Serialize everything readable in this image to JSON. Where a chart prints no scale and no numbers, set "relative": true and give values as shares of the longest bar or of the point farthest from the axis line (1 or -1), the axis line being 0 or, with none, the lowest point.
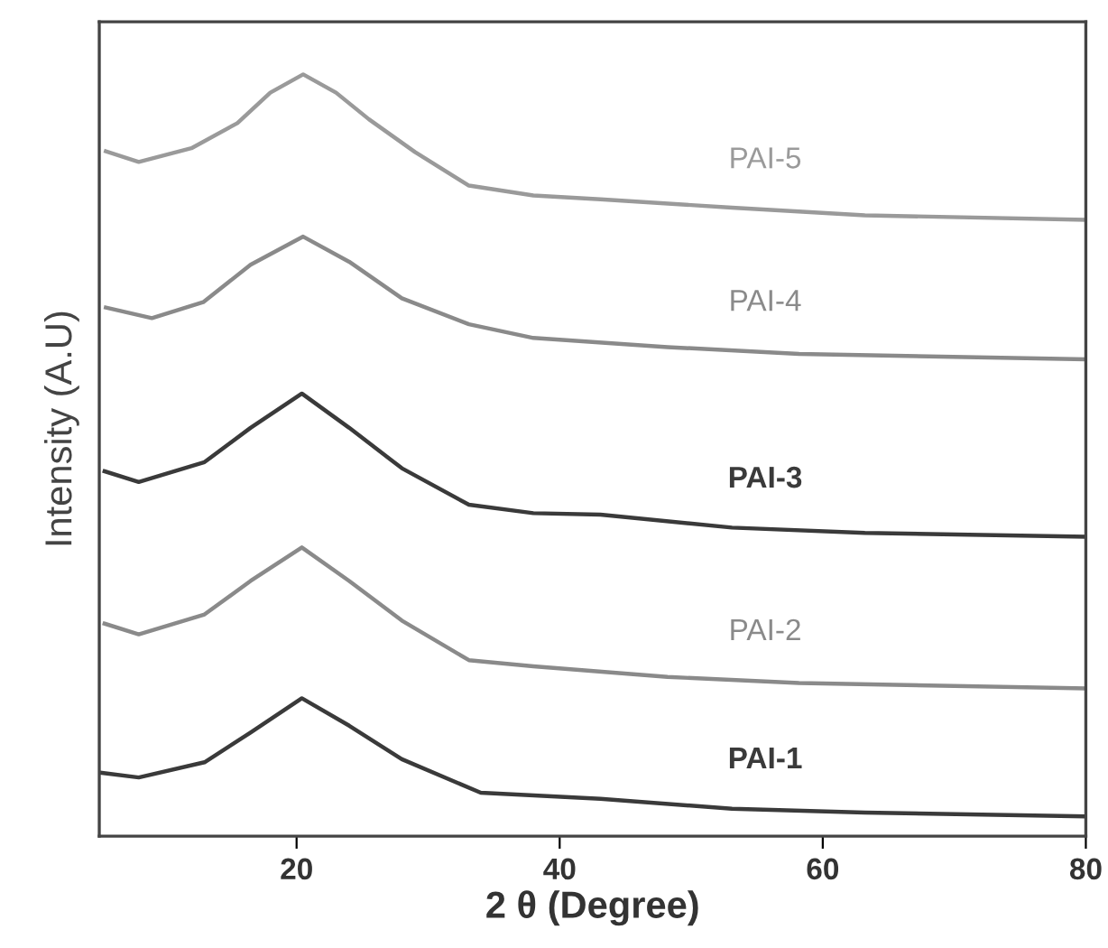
{
  "chart_data": {
    "type": "line",
    "relative": true,
    "xlabel": "2 θ (Degree)",
    "ylabel": "Intensity (A.U)",
    "xlim": [
      5,
      80
    ],
    "xticks": [
      20,
      40,
      60,
      80
    ],
    "tick_labels": "x",
    "grid": false,
    "legend": false,
    "marker": "none",
    "line_style": "solid",
    "series": [
      {
        "name": "PAI-1",
        "color": "#3a3a3a",
        "x": [
          5.2,
          8.0,
          13.0,
          16.5,
          20.4,
          24.0,
          28.0,
          34.0,
          43.1,
          53.1,
          63.2,
          80
        ],
        "values": [
          0.083,
          0.077,
          0.097,
          0.136,
          0.181,
          0.145,
          0.101,
          0.057,
          0.049,
          0.036,
          0.031,
          0.026
        ]
      },
      {
        "name": "PAI-2",
        "color": "#8a8a8a",
        "x": [
          5.4,
          8.0,
          13.0,
          16.5,
          20.4,
          24.0,
          28.0,
          33.1,
          38.0,
          48.2,
          58.2,
          80
        ],
        "values": [
          0.279,
          0.265,
          0.291,
          0.335,
          0.379,
          0.335,
          0.283,
          0.231,
          0.223,
          0.209,
          0.201,
          0.194
        ]
      },
      {
        "name": "PAI-3",
        "color": "#3a3a3a",
        "x": [
          5.4,
          8.0,
          13.0,
          16.5,
          20.4,
          24.0,
          28.0,
          33.1,
          38.0,
          43.1,
          53.1,
          63.2,
          80
        ],
        "values": [
          0.479,
          0.465,
          0.491,
          0.536,
          0.581,
          0.536,
          0.483,
          0.435,
          0.424,
          0.422,
          0.405,
          0.398,
          0.393
        ]
      },
      {
        "name": "PAI-4",
        "color": "#8a8a8a",
        "x": [
          5.5,
          9.0,
          12.9,
          16.5,
          20.5,
          24.0,
          28.0,
          33.1,
          38.0,
          48.2,
          58.2,
          80
        ],
        "values": [
          0.694,
          0.68,
          0.701,
          0.75,
          0.787,
          0.754,
          0.706,
          0.672,
          0.654,
          0.642,
          0.633,
          0.626
        ]
      },
      {
        "name": "PAI-5",
        "color": "#9a9a9a",
        "x": [
          5.5,
          8.0,
          12.0,
          15.5,
          18.0,
          20.5,
          23.0,
          25.5,
          29.0,
          33.1,
          38.0,
          43.1,
          53.1,
          63.2,
          80
        ],
        "values": [
          0.899,
          0.885,
          0.903,
          0.936,
          0.976,
          1.0,
          0.976,
          0.941,
          0.898,
          0.854,
          0.841,
          0.836,
          0.825,
          0.815,
          0.809
        ]
      }
    ]
  }
}
